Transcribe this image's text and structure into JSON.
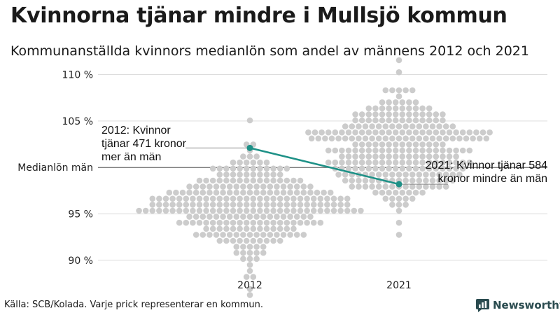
{
  "header": {
    "title": "Kvinnorna tjänar mindre i Mullsjö kommun",
    "subtitle": "Kommunanställda kvinnors medianlön som andel av männens 2012 och 2021"
  },
  "footer": {
    "source": "Källa: SCB/Kolada. Varje prick representerar en kommun.",
    "logo_text": "Newsworthy"
  },
  "colors": {
    "dots": "#cccccc",
    "highlight": "#1e9187",
    "grid": "#dddddd",
    "reference": "#555555",
    "logo": "#2a4b4f"
  },
  "chart_data": {
    "type": "scatter",
    "title": "Kvinnorna tjänar mindre i Mullsjö kommun",
    "subtitle": "Kommunanställda kvinnors medianlön som andel av männens 2012 och 2021",
    "categories": [
      "2012",
      "2021"
    ],
    "y_ticks": [
      {
        "value": 90,
        "label": "90 %"
      },
      {
        "value": 95,
        "label": "95 %"
      },
      {
        "value": 105,
        "label": "105 %"
      },
      {
        "value": 110,
        "label": "110 %"
      }
    ],
    "reference_line": {
      "value": 100,
      "label": "Medianlön män"
    },
    "ylim": [
      86,
      112
    ],
    "grid": true,
    "distributions": [
      {
        "category": "2012",
        "n": 290,
        "mean": 95.9,
        "sd": 2.6,
        "min": 86.5,
        "max": 105.3
      },
      {
        "category": "2021",
        "n": 290,
        "mean": 101.9,
        "sd": 2.8,
        "min": 92.6,
        "max": 111.3
      }
    ],
    "series": [
      {
        "name": "Mullsjö",
        "values": [
          102.1,
          98.2
        ]
      }
    ],
    "annotations": [
      {
        "category": "2012",
        "value": 102.1,
        "text": "2012: Kvinnor tjänar 471 kronor mer än män"
      },
      {
        "category": "2021",
        "value": 98.2,
        "text": "2021: Kvinnor tjänar 584 kronor mindre än män"
      }
    ]
  }
}
